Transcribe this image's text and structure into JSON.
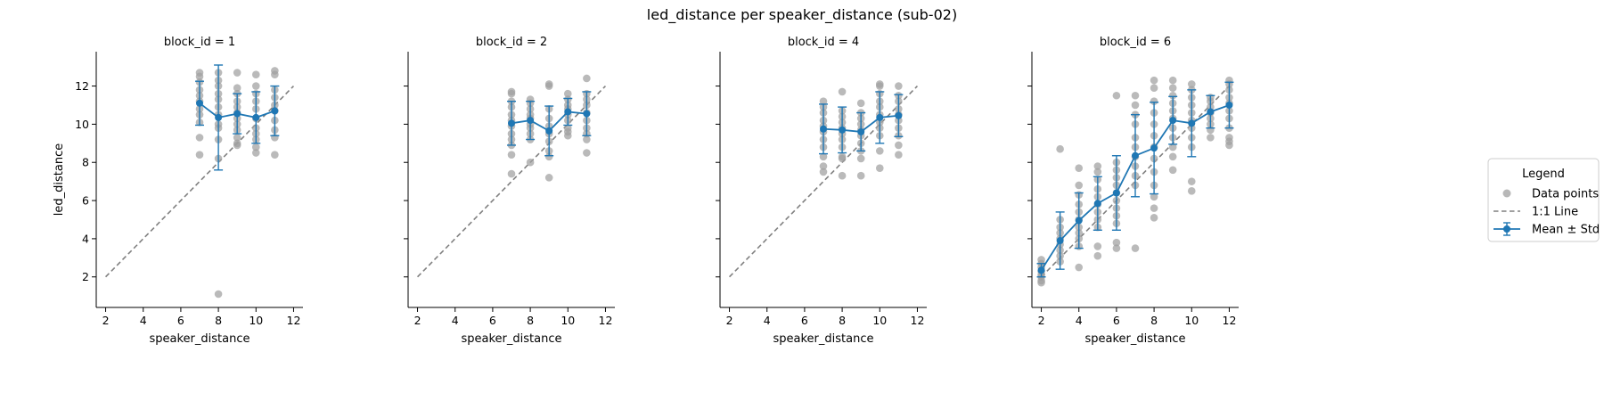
{
  "figure": {
    "title": "led_distance per speaker_distance (sub-02)"
  },
  "legend": {
    "title": "Legend",
    "entries": [
      {
        "label": "Data points",
        "kind": "scatter",
        "color": "#a0a0a0"
      },
      {
        "label": "1:1 Line",
        "kind": "dashed-line",
        "color": "#808080"
      },
      {
        "label": "Mean ± Std",
        "kind": "errorbar-line",
        "color": "#1f77b4"
      }
    ]
  },
  "colors": {
    "points": "#a0a0a0",
    "identity": "#808080",
    "mean": "#1f77b4"
  },
  "chart_data": {
    "type": "scatter",
    "xlabel": "speaker_distance",
    "ylabel": "led_distance",
    "xlim": [
      1.5,
      12.5
    ],
    "ylim": [
      0.4,
      13.8
    ],
    "xticks": [
      2,
      4,
      6,
      8,
      10,
      12
    ],
    "yticks": [
      2,
      4,
      6,
      8,
      10,
      12
    ],
    "grid": false,
    "legend_position": "right",
    "identity_line": {
      "x": [
        2,
        12
      ],
      "y": [
        2,
        12
      ]
    },
    "panels": [
      {
        "title": "block_id = 1",
        "mean": {
          "x": [
            7,
            8,
            9,
            10,
            11
          ],
          "y": [
            11.1,
            10.35,
            10.55,
            10.35,
            10.7
          ],
          "std": [
            1.15,
            2.75,
            1.05,
            1.35,
            1.3
          ]
        },
        "points": [
          [
            7,
            12.7
          ],
          [
            7,
            12.5
          ],
          [
            7,
            12.2
          ],
          [
            7,
            11.8
          ],
          [
            7,
            11.5
          ],
          [
            7,
            11.2
          ],
          [
            7,
            10.8
          ],
          [
            7,
            10.5
          ],
          [
            7,
            10.1
          ],
          [
            7,
            9.3
          ],
          [
            7,
            8.4
          ],
          [
            8,
            12.7
          ],
          [
            8,
            12.3
          ],
          [
            8,
            12.0
          ],
          [
            8,
            11.6
          ],
          [
            8,
            11.3
          ],
          [
            8,
            10.9
          ],
          [
            8,
            10.5
          ],
          [
            8,
            10.0
          ],
          [
            8,
            9.8
          ],
          [
            8,
            9.2
          ],
          [
            8,
            8.2
          ],
          [
            8,
            1.1
          ],
          [
            9,
            12.7
          ],
          [
            9,
            11.9
          ],
          [
            9,
            11.6
          ],
          [
            9,
            11.2
          ],
          [
            9,
            10.9
          ],
          [
            9,
            10.6
          ],
          [
            9,
            10.3
          ],
          [
            9,
            10.0
          ],
          [
            9,
            9.7
          ],
          [
            9,
            9.3
          ],
          [
            9,
            9.0
          ],
          [
            9,
            8.9
          ],
          [
            10,
            12.6
          ],
          [
            10,
            12.0
          ],
          [
            10,
            11.6
          ],
          [
            10,
            11.2
          ],
          [
            10,
            10.8
          ],
          [
            10,
            10.3
          ],
          [
            10,
            9.8
          ],
          [
            10,
            9.5
          ],
          [
            10,
            9.2
          ],
          [
            10,
            8.8
          ],
          [
            10,
            8.5
          ],
          [
            11,
            12.8
          ],
          [
            11,
            12.6
          ],
          [
            11,
            11.8
          ],
          [
            11,
            11.4
          ],
          [
            11,
            11.0
          ],
          [
            11,
            10.7
          ],
          [
            11,
            10.2
          ],
          [
            11,
            9.7
          ],
          [
            11,
            9.3
          ],
          [
            11,
            8.4
          ]
        ]
      },
      {
        "title": "block_id = 2",
        "mean": {
          "x": [
            7,
            8,
            9,
            10,
            11
          ],
          "y": [
            10.05,
            10.2,
            9.65,
            10.65,
            10.55
          ],
          "std": [
            1.15,
            1.0,
            1.3,
            0.7,
            1.15
          ]
        },
        "points": [
          [
            7,
            11.7
          ],
          [
            7,
            11.6
          ],
          [
            7,
            11.2
          ],
          [
            7,
            10.9
          ],
          [
            7,
            10.5
          ],
          [
            7,
            10.2
          ],
          [
            7,
            9.9
          ],
          [
            7,
            9.5
          ],
          [
            7,
            9.2
          ],
          [
            7,
            8.9
          ],
          [
            7,
            8.4
          ],
          [
            7,
            7.4
          ],
          [
            8,
            11.3
          ],
          [
            8,
            11.1
          ],
          [
            8,
            10.8
          ],
          [
            8,
            10.5
          ],
          [
            8,
            10.3
          ],
          [
            8,
            10.0
          ],
          [
            8,
            9.8
          ],
          [
            8,
            9.5
          ],
          [
            8,
            9.2
          ],
          [
            8,
            8.0
          ],
          [
            9,
            12.1
          ],
          [
            9,
            12.0
          ],
          [
            9,
            10.8
          ],
          [
            9,
            10.3
          ],
          [
            9,
            9.9
          ],
          [
            9,
            9.5
          ],
          [
            9,
            9.1
          ],
          [
            9,
            8.6
          ],
          [
            9,
            8.3
          ],
          [
            9,
            7.2
          ],
          [
            10,
            11.6
          ],
          [
            10,
            11.3
          ],
          [
            10,
            11.0
          ],
          [
            10,
            10.8
          ],
          [
            10,
            10.5
          ],
          [
            10,
            10.2
          ],
          [
            10,
            9.8
          ],
          [
            10,
            9.6
          ],
          [
            10,
            9.4
          ],
          [
            11,
            12.4
          ],
          [
            11,
            11.6
          ],
          [
            11,
            11.3
          ],
          [
            11,
            11.0
          ],
          [
            11,
            10.6
          ],
          [
            11,
            10.2
          ],
          [
            11,
            9.8
          ],
          [
            11,
            9.5
          ],
          [
            11,
            9.2
          ],
          [
            11,
            8.5
          ]
        ]
      },
      {
        "title": "block_id = 4",
        "mean": {
          "x": [
            7,
            8,
            9,
            10,
            11
          ],
          "y": [
            9.75,
            9.7,
            9.6,
            10.35,
            10.45
          ],
          "std": [
            1.3,
            1.2,
            1.0,
            1.35,
            1.1
          ]
        },
        "points": [
          [
            7,
            11.2
          ],
          [
            7,
            10.9
          ],
          [
            7,
            10.6
          ],
          [
            7,
            10.2
          ],
          [
            7,
            9.9
          ],
          [
            7,
            9.6
          ],
          [
            7,
            9.2
          ],
          [
            7,
            8.8
          ],
          [
            7,
            8.3
          ],
          [
            7,
            7.8
          ],
          [
            7,
            7.5
          ],
          [
            8,
            11.7
          ],
          [
            8,
            10.7
          ],
          [
            8,
            10.4
          ],
          [
            8,
            10.1
          ],
          [
            8,
            9.8
          ],
          [
            8,
            9.5
          ],
          [
            8,
            9.2
          ],
          [
            8,
            8.8
          ],
          [
            8,
            8.3
          ],
          [
            8,
            8.2
          ],
          [
            8,
            7.3
          ],
          [
            9,
            11.1
          ],
          [
            9,
            10.6
          ],
          [
            9,
            10.3
          ],
          [
            9,
            10.0
          ],
          [
            9,
            9.7
          ],
          [
            9,
            9.4
          ],
          [
            9,
            9.0
          ],
          [
            9,
            8.6
          ],
          [
            9,
            8.2
          ],
          [
            9,
            7.3
          ],
          [
            10,
            12.1
          ],
          [
            10,
            12.0
          ],
          [
            10,
            11.6
          ],
          [
            10,
            11.2
          ],
          [
            10,
            10.9
          ],
          [
            10,
            10.5
          ],
          [
            10,
            10.1
          ],
          [
            10,
            9.8
          ],
          [
            10,
            9.4
          ],
          [
            10,
            8.6
          ],
          [
            10,
            7.7
          ],
          [
            11,
            12.0
          ],
          [
            11,
            11.5
          ],
          [
            11,
            11.2
          ],
          [
            11,
            10.8
          ],
          [
            11,
            10.5
          ],
          [
            11,
            10.2
          ],
          [
            11,
            9.8
          ],
          [
            11,
            9.4
          ],
          [
            11,
            8.9
          ],
          [
            11,
            8.4
          ]
        ]
      },
      {
        "title": "block_id = 6",
        "mean": {
          "x": [
            2,
            3,
            4,
            5,
            6,
            7,
            8,
            9,
            10,
            11,
            12
          ],
          "y": [
            2.35,
            3.9,
            4.95,
            5.85,
            6.4,
            8.35,
            8.75,
            10.2,
            10.05,
            10.65,
            11.0
          ],
          "std": [
            0.35,
            1.5,
            1.45,
            1.4,
            1.95,
            2.15,
            2.4,
            1.25,
            1.75,
            0.85,
            1.2
          ]
        },
        "points": [
          [
            2,
            2.9
          ],
          [
            2,
            2.7
          ],
          [
            2,
            2.5
          ],
          [
            2,
            2.3
          ],
          [
            2,
            2.1
          ],
          [
            2,
            2.0
          ],
          [
            2,
            1.8
          ],
          [
            2,
            1.7
          ],
          [
            3,
            8.7
          ],
          [
            3,
            5.0
          ],
          [
            3,
            4.6
          ],
          [
            3,
            4.3
          ],
          [
            3,
            4.0
          ],
          [
            3,
            3.7
          ],
          [
            3,
            3.4
          ],
          [
            3,
            3.1
          ],
          [
            3,
            2.8
          ],
          [
            4,
            7.7
          ],
          [
            4,
            6.8
          ],
          [
            4,
            6.3
          ],
          [
            4,
            5.8
          ],
          [
            4,
            5.4
          ],
          [
            4,
            5.0
          ],
          [
            4,
            4.6
          ],
          [
            4,
            4.3
          ],
          [
            4,
            4.0
          ],
          [
            4,
            3.6
          ],
          [
            4,
            2.5
          ],
          [
            5,
            7.8
          ],
          [
            5,
            7.5
          ],
          [
            5,
            7.1
          ],
          [
            5,
            6.6
          ],
          [
            5,
            6.2
          ],
          [
            5,
            5.8
          ],
          [
            5,
            5.4
          ],
          [
            5,
            5.0
          ],
          [
            5,
            4.6
          ],
          [
            5,
            3.6
          ],
          [
            5,
            3.1
          ],
          [
            6,
            11.5
          ],
          [
            6,
            8.0
          ],
          [
            6,
            7.6
          ],
          [
            6,
            7.2
          ],
          [
            6,
            6.8
          ],
          [
            6,
            6.4
          ],
          [
            6,
            6.0
          ],
          [
            6,
            5.6
          ],
          [
            6,
            5.2
          ],
          [
            6,
            4.8
          ],
          [
            6,
            3.8
          ],
          [
            6,
            3.5
          ],
          [
            7,
            11.5
          ],
          [
            7,
            11.0
          ],
          [
            7,
            10.5
          ],
          [
            7,
            10.0
          ],
          [
            7,
            9.3
          ],
          [
            7,
            8.8
          ],
          [
            7,
            8.3
          ],
          [
            7,
            7.8
          ],
          [
            7,
            7.3
          ],
          [
            7,
            6.8
          ],
          [
            7,
            3.5
          ],
          [
            8,
            12.3
          ],
          [
            8,
            11.9
          ],
          [
            8,
            11.2
          ],
          [
            8,
            10.6
          ],
          [
            8,
            10.0
          ],
          [
            8,
            9.4
          ],
          [
            8,
            8.8
          ],
          [
            8,
            8.2
          ],
          [
            8,
            7.5
          ],
          [
            8,
            6.8
          ],
          [
            8,
            6.2
          ],
          [
            8,
            5.6
          ],
          [
            8,
            5.1
          ],
          [
            9,
            12.3
          ],
          [
            9,
            11.9
          ],
          [
            9,
            11.5
          ],
          [
            9,
            11.1
          ],
          [
            9,
            10.7
          ],
          [
            9,
            10.3
          ],
          [
            9,
            9.8
          ],
          [
            9,
            9.3
          ],
          [
            9,
            8.8
          ],
          [
            9,
            8.3
          ],
          [
            9,
            7.6
          ],
          [
            10,
            12.1
          ],
          [
            10,
            11.8
          ],
          [
            10,
            11.4
          ],
          [
            10,
            11.0
          ],
          [
            10,
            10.6
          ],
          [
            10,
            10.2
          ],
          [
            10,
            9.8
          ],
          [
            10,
            9.3
          ],
          [
            10,
            8.8
          ],
          [
            10,
            7.0
          ],
          [
            10,
            6.5
          ],
          [
            11,
            11.4
          ],
          [
            11,
            11.2
          ],
          [
            11,
            10.9
          ],
          [
            11,
            10.6
          ],
          [
            11,
            10.3
          ],
          [
            11,
            10.0
          ],
          [
            11,
            9.7
          ],
          [
            11,
            9.3
          ],
          [
            12,
            12.3
          ],
          [
            12,
            12.1
          ],
          [
            12,
            11.8
          ],
          [
            12,
            11.4
          ],
          [
            12,
            11.1
          ],
          [
            12,
            10.7
          ],
          [
            12,
            10.3
          ],
          [
            12,
            9.8
          ],
          [
            12,
            9.3
          ],
          [
            12,
            9.1
          ],
          [
            12,
            8.9
          ]
        ]
      }
    ]
  }
}
